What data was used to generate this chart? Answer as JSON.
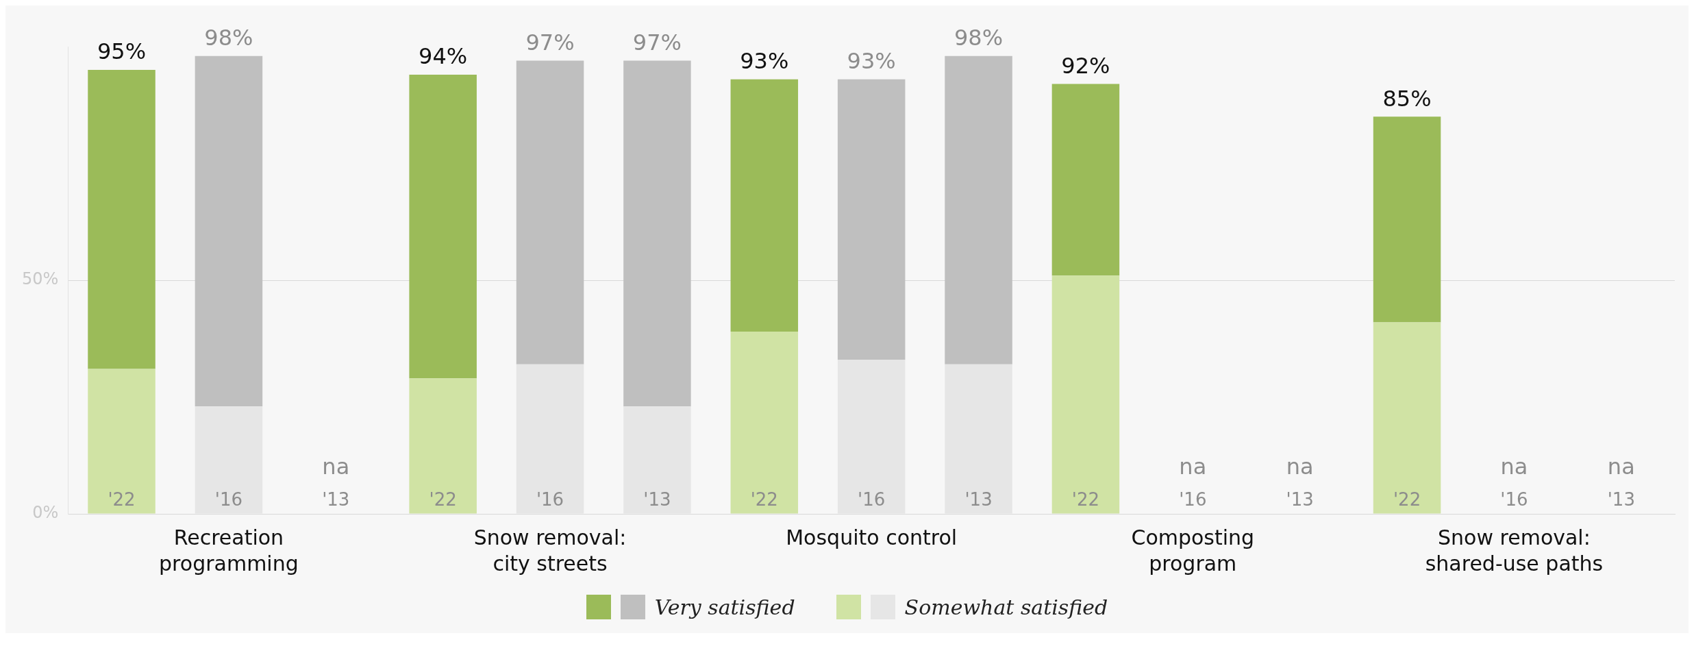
{
  "chart_data": {
    "type": "bar",
    "stacked": true,
    "categories": [
      "'22",
      "'16",
      "'13",
      "'22",
      "'16",
      "'13",
      "'22",
      "'16",
      "'13",
      "'22",
      "'16",
      "'13",
      "'22",
      "'16",
      "'13"
    ],
    "series": [
      {
        "name": "Somewhat satisfied",
        "colors": [
          "#d0e3a4",
          "#e6e6e6",
          "#e6e6e6",
          "#d0e3a4",
          "#e6e6e6",
          "#e6e6e6",
          "#d0e3a4",
          "#e6e6e6",
          "#e6e6e6",
          "#d0e3a4",
          "#e6e6e6",
          "#e6e6e6",
          "#d0e3a4",
          "#e6e6e6",
          "#e6e6e6"
        ],
        "values": [
          31,
          23,
          null,
          29,
          32,
          23,
          39,
          33,
          32,
          51,
          null,
          null,
          41,
          null,
          null
        ]
      },
      {
        "name": "Very satisfied",
        "colors": [
          "#9bbb59",
          "#bfbfbf",
          "#bfbfbf",
          "#9bbb59",
          "#bfbfbf",
          "#bfbfbf",
          "#9bbb59",
          "#bfbfbf",
          "#bfbfbf",
          "#9bbb59",
          "#bfbfbf",
          "#bfbfbf",
          "#9bbb59",
          "#bfbfbf",
          "#bfbfbf"
        ],
        "values": [
          64,
          75,
          null,
          65,
          65,
          74,
          54,
          60,
          66,
          41,
          null,
          null,
          44,
          null,
          null
        ]
      }
    ],
    "totals": [
      "95%",
      "98%",
      "na",
      "94%",
      "97%",
      "97%",
      "93%",
      "93%",
      "98%",
      "92%",
      "na",
      "na",
      "85%",
      "na",
      "na"
    ],
    "ylim": [
      0,
      100
    ],
    "yticks": [
      {
        "value": 0,
        "label": "0%"
      },
      {
        "value": 50,
        "label": "50%"
      }
    ],
    "grid": "y",
    "legend": "bottom",
    "annotations": [
      "Recreation programming",
      "Snow removal: city streets",
      "Mosquito control",
      "Composting program",
      "Snow removal: shared-use paths"
    ]
  }
}
